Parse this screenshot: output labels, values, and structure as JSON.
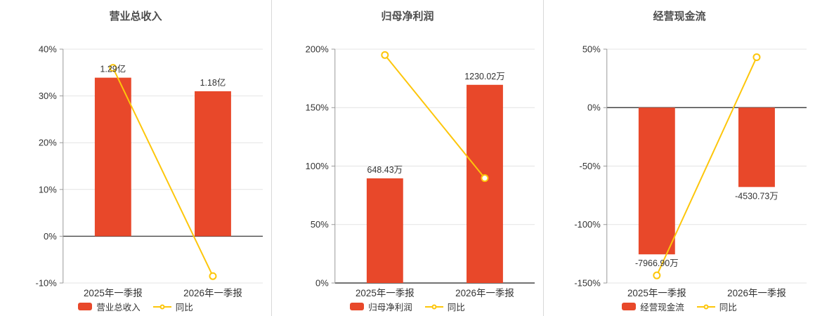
{
  "colors": {
    "background": "#ffffff",
    "bar": "#e8482a",
    "line": "#fdc60b",
    "marker_fill": "#ffffff",
    "title": "#4d4d4d",
    "axis_label": "#333333",
    "value_label": "#333333",
    "grid": "#e4e4e4",
    "axis_line": "#999999",
    "zero_line": "#454545",
    "divider": "#d8d8d8"
  },
  "chart_data": [
    {
      "type": "bar",
      "title": "营业总收入",
      "categories": [
        "2025年一季报",
        "2026年一季报"
      ],
      "bar_series": {
        "name": "营业总收入",
        "labels": [
          "1.29亿",
          "1.18亿"
        ],
        "axis_values_pct": [
          33.9,
          31.0
        ]
      },
      "line_series": {
        "name": "同比",
        "values_pct": [
          36.0,
          -8.53
        ]
      },
      "ylim": [
        -10,
        40
      ],
      "yticks": [
        40,
        30,
        20,
        10,
        0,
        -10
      ],
      "ytick_suffix": "%",
      "legend": [
        "营业总收入",
        "同比"
      ],
      "grid": true,
      "legend_position": "bottom"
    },
    {
      "type": "bar",
      "title": "归母净利润",
      "categories": [
        "2025年一季报",
        "2026年一季报"
      ],
      "bar_series": {
        "name": "归母净利润",
        "labels": [
          "648.43万",
          "1230.02万"
        ],
        "axis_values_pct": [
          89.5,
          169.5
        ]
      },
      "line_series": {
        "name": "同比",
        "values_pct": [
          195.0,
          89.69
        ]
      },
      "ylim": [
        0,
        200
      ],
      "yticks": [
        200,
        150,
        100,
        50,
        0
      ],
      "ytick_suffix": "%",
      "legend": [
        "归母净利润",
        "同比"
      ],
      "grid": true,
      "legend_position": "bottom"
    },
    {
      "type": "bar",
      "title": "经营现金流",
      "categories": [
        "2025年一季报",
        "2026年一季报"
      ],
      "bar_series": {
        "name": "经营现金流",
        "labels": [
          "-7966.90万",
          "-4530.73万"
        ],
        "axis_values_pct": [
          -125.5,
          -67.9
        ]
      },
      "line_series": {
        "name": "同比",
        "values_pct": [
          -143.5,
          43.13
        ]
      },
      "ylim": [
        -150,
        50
      ],
      "yticks": [
        50,
        0,
        -50,
        -100,
        -150
      ],
      "ytick_suffix": "%",
      "legend": [
        "经营现金流",
        "同比"
      ],
      "grid": true,
      "legend_position": "bottom"
    }
  ]
}
